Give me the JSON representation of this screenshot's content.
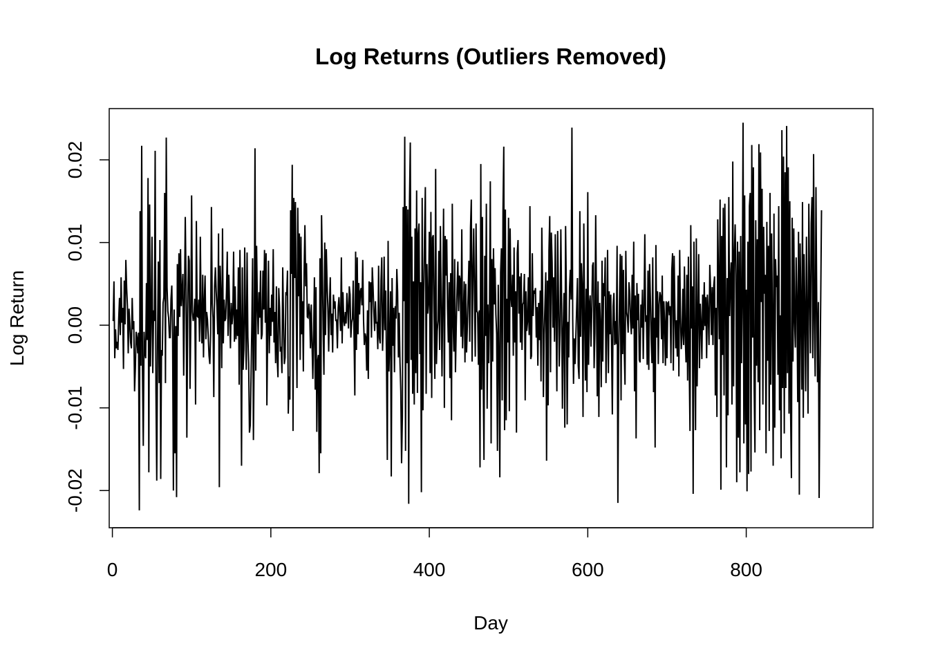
{
  "chart_data": {
    "type": "line",
    "title": "Log Returns (Outliers Removed)",
    "xlabel": "Day",
    "ylabel": "Log Return",
    "xlim": [
      -4,
      960
    ],
    "ylim": [
      -0.0245,
      0.0262
    ],
    "x_ticks": [
      0,
      200,
      400,
      600,
      800
    ],
    "x_tick_labels": [
      "0",
      "200",
      "400",
      "600",
      "800"
    ],
    "y_ticks": [
      -0.02,
      -0.01,
      0.0,
      0.01,
      0.02
    ],
    "y_tick_labels": [
      "-0.02",
      "-0.01",
      "0.00",
      "0.01",
      "0.02"
    ],
    "grid": false,
    "legend": "none",
    "line_color": "#000000",
    "series": [
      {
        "x_start": 1,
        "x_step": 1,
        "values": [
          0.0005,
          0.0053,
          -0.004,
          -0.0005,
          -0.0028,
          -0.002,
          -0.003,
          0.0008,
          0.0033,
          -0.0012,
          0.0058,
          0.0003,
          0.0021,
          -0.0053,
          0.0054,
          0.0001,
          0.0079,
          0.0045,
          0.0023,
          -0.0034,
          0.002,
          0.0002,
          -0.0021,
          -0.0028,
          0.0033,
          -0.0005,
          0.0005,
          -0.008,
          -0.0052,
          -0.0008,
          -0.0015,
          -0.0034,
          -0.0009,
          -0.0224,
          0.0138,
          -0.0049,
          0.0217,
          -0.0055,
          -0.0146,
          -0.0008,
          -0.0033,
          -0.004,
          0.0051,
          -0.0018,
          0.0178,
          -0.0178,
          0.0146,
          -0.005,
          0.0011,
          0.0107,
          -0.0058,
          0.0018,
          0.0005,
          0.0211,
          -0.008,
          -0.0188,
          -0.002,
          0.0077,
          -0.007,
          0.0103,
          -0.0186,
          -0.003,
          -0.0037,
          0.0027,
          0.0034,
          0.016,
          -0.007,
          0.0227,
          0.0046,
          0.0017,
          0.0009,
          -0.0015,
          -0.0015,
          0.0032,
          0.0048,
          -0.0011,
          -0.02,
          0.0019,
          -0.0155,
          -0.0001,
          -0.0208,
          0.0074,
          -0.0013,
          0.0087,
          0.001,
          0.0092,
          0.0023,
          0.0042,
          0.0062,
          -0.0061,
          0.0029,
          0.0131,
          0.005,
          -0.0136,
          0.0012,
          0.0084,
          0.0078,
          -0.0077,
          0.0005,
          0.0157,
          0.0016,
          0.0005,
          0.0013,
          0.0032,
          -0.0096,
          0.0126,
          0.0011,
          0.001,
          0.0031,
          -0.002,
          0.0107,
          0.0009,
          -0.0022,
          0.0061,
          -0.0039,
          0.003,
          0.006,
          -0.0017,
          0.0016,
          0.0007,
          -0.0014,
          -0.0037,
          -0.0047,
          -0.001,
          0.0143,
          0.0027,
          0.0009,
          -0.0087,
          0.0047,
          0.007,
          0.0041,
          0.0022,
          -0.0011,
          0.0111,
          -0.0196,
          0.0072,
          0.0038,
          -0.0052,
          0.0117,
          -0.0022,
          0.0031,
          0.0005,
          0.0008,
          0.004,
          0.0089,
          -0.0013,
          0.0061,
          0.0016,
          -0.0028,
          0.0027,
          0.0001,
          0.0014,
          0.0089,
          -0.002,
          0.0047,
          -0.0017,
          0.0019,
          -0.0013,
          0.007,
          -0.0072,
          0.0091,
          0.0008,
          -0.017,
          0.007,
          -0.0054,
          -0.0029,
          0.0094,
          0.0003,
          -0.0054,
          0.0088,
          -0.0014,
          -0.0046,
          -0.013,
          -0.0121,
          -0.0062,
          -0.0001,
          0.0081,
          -0.0139,
          -0.003,
          0.0214,
          -0.0055,
          0.0096,
          0.0026,
          -0.0011,
          0.004,
          0.0009,
          0.0066,
          -0.0017,
          -0.0011,
          0.0066,
          0.0019,
          0.0091,
          0.0003,
          0.0087,
          -0.0097,
          -0.0006,
          0.0078,
          -0.0034,
          0.0021,
          -0.0013,
          0.0037,
          0.0004,
          0.0092,
          -0.0021,
          0.0016,
          -0.0046,
          0.0047,
          -0.004,
          -0.0063,
          0.0045,
          0.0021,
          -0.0032,
          -0.0026,
          -0.0058,
          0.007,
          0.0006,
          -0.0047,
          -0.0039,
          0.004,
          0.0036,
          0.0066,
          -0.0107,
          -0.0062,
          -0.009,
          0.0139,
          0.0062,
          0.0194,
          -0.0128,
          0.0154,
          0.0057,
          0.0149,
          0.003,
          -0.0076,
          0.0142,
          0.0035,
          0.0111,
          -0.0042,
          0.0107,
          -0.0011,
          0.0029,
          -0.0056,
          0.0065,
          0.0121,
          0.0047,
          0.0075,
          0.001,
          0.0009,
          0.0026,
          0.0015,
          -0.0028,
          0.0025,
          -0.0022,
          -0.0065,
          -0.0011,
          0.0058,
          -0.0078,
          0.0046,
          -0.0129,
          -0.0044,
          -0.0036,
          -0.0179,
          0.0081,
          -0.0155,
          0.0133,
          0.0071,
          -0.0005,
          -0.006,
          0.01,
          -0.0012,
          0.0092,
          0.005,
          0.002,
          -0.0032,
          0.0025,
          0.0058,
          -0.0012,
          0.0014,
          -0.0033,
          0.0037,
          0.002,
          0.0029,
          0.0005,
          0.0007,
          -0.0028,
          0.0021,
          0.0034,
          0.0012,
          -0.0007,
          0.0082,
          -0.0022,
          0.004,
          0.0006,
          -0.0001,
          0.0016,
          0.0002,
          0.0039,
          0.002,
          -0.0004,
          0.0047,
          0.0037,
          -0.0015,
          0.0003,
          0.0008,
          0.0054,
          -0.0013,
          -0.0085,
          0.0089,
          -0.003,
          0.0082,
          -0.0011,
          0.0051,
          0.0013,
          0.0041,
          0.0045,
          0.0024,
          0.0079,
          0.0006,
          -0.0024,
          -0.001,
          -0.0015,
          -0.0055,
          0.0018,
          -0.0065,
          0.0053,
          0.0028,
          0.0052,
          -0.0015,
          0.007,
          0.0046,
          0.0016,
          -0.0007,
          0.0029,
          0.0002,
          0.0004,
          -0.0029,
          0.0072,
          -0.0015,
          -0.0022,
          0.0054,
          0.0082,
          -0.0031,
          0.0003,
          0.0083,
          -0.0006,
          0.0042,
          -0.0046,
          -0.0163,
          0.0102,
          -0.0056,
          -0.0021,
          0.0041,
          -0.0183,
          0.0057,
          -0.0025,
          0.0021,
          -0.0057,
          0.0023,
          0.0008,
          0.0068,
          0.004,
          -0.0039,
          0.0015,
          -0.0045,
          -0.008,
          -0.0167,
          -0.011,
          0.0143,
          0.0029,
          0.0228,
          -0.0152,
          0.0144,
          -0.0046,
          0.014,
          -0.0216,
          0.015,
          0.0221,
          -0.0042,
          0.0107,
          -0.0083,
          0.0053,
          -0.0096,
          0.0117,
          -0.0058,
          0.0163,
          -0.0082,
          0.0111,
          0.0123,
          -0.0035,
          0.0052,
          -0.0202,
          0.0154,
          -0.0103,
          0.0038,
          0.0108,
          0.0167,
          -0.0083,
          0.0074,
          0.0014,
          0.0028,
          0.0113,
          -0.0058,
          0.0137,
          -0.0088,
          0.0106,
          0.0109,
          0.0014,
          -0.0065,
          0.0189,
          -0.0047,
          -0.0007,
          0.0006,
          0.009,
          -0.003,
          0.012,
          0.0033,
          -0.0062,
          0.0034,
          0.0141,
          -0.01,
          0.0108,
          0.006,
          0.0104,
          0.0022,
          -0.0021,
          0.0052,
          -0.0064,
          0.0063,
          -0.0115,
          0.0147,
          0.0004,
          -0.0032,
          0.008,
          -0.0057,
          -0.0002,
          0.0043,
          0.0077,
          0.0017,
          0.006,
          0.0055,
          -0.0014,
          0.0116,
          -0.0028,
          0.0012,
          0.0053,
          -0.0045,
          0.005,
          -0.0033,
          -0.0002,
          0.0037,
          0.0078,
          -0.002,
          0.0118,
          0.0152,
          -0.0044,
          0.0063,
          0.0117,
          0.0037,
          -0.0038,
          0.0123,
          0.0017,
          0.0015,
          -0.0048,
          0.0018,
          -0.0172,
          0.0195,
          -0.0078,
          0.0131,
          -0.0059,
          -0.0163,
          0.0084,
          -0.0013,
          0.0147,
          -0.0101,
          0.0025,
          -0.0046,
          0.0018,
          0.0174,
          -0.0143,
          0.008,
          -0.0044,
          0.0093,
          0.0025,
          0.0069,
          0.0013,
          -0.0011,
          -0.0152,
          0.0049,
          -0.0036,
          -0.0184,
          0.0064,
          0.0093,
          -0.0091,
          0.0138,
          0.0216,
          -0.0127,
          0.014,
          -0.0115,
          0.0032,
          -0.0021,
          0.013,
          -0.0104,
          0.0117,
          0.0036,
          0.0022,
          0.0061,
          -0.0037,
          0.0094,
          -0.0021,
          0.0041,
          -0.013,
          0.0087,
          0.0103,
          0.0014,
          0.0059,
          -0.0021,
          0.0063,
          -0.003,
          0.0025,
          0.0028,
          0.0062,
          -0.0091,
          0.0041,
          -0.0007,
          0.0004,
          0.0058,
          -0.0012,
          0.0144,
          -0.0041,
          -0.0037,
          0.0087,
          0.0011,
          0.0042,
          0.0038,
          0.0045,
          -0.0015,
          0.0022,
          -0.0049,
          0.0027,
          -0.0018,
          0.0042,
          -0.0068,
          0.0118,
          0.0042,
          -0.0087,
          -0.0011,
          0.0026,
          0.0064,
          -0.0164,
          0.0054,
          -0.0097,
          0.009,
          0.0132,
          -0.0057,
          0.0112,
          0.0076,
          -0.0003,
          0.0058,
          -0.002,
          0.011,
          0.0008,
          -0.008,
          0.0114,
          0.0034,
          -0.005,
          -0.0008,
          0.0116,
          0.0027,
          -0.0101,
          -0.0005,
          0.0039,
          -0.0124,
          0.012,
          0.0039,
          -0.012,
          0.0004,
          -0.0039,
          0.0045,
          0.0067,
          0.0031,
          0.0239,
          0.0007,
          -0.0071,
          -0.0016,
          -0.0047,
          -0.0012,
          0.0022,
          0.0057,
          -0.0049,
          -0.0065,
          0.0138,
          -0.0014,
          0.0075,
          0.0048,
          -0.0111,
          0.0123,
          0.0013,
          -0.0067,
          0.0044,
          -0.0081,
          0.0161,
          -0.0048,
          0.0024,
          0.0036,
          -0.0026,
          0.0017,
          0.0072,
          0.0076,
          -0.0052,
          -0.0009,
          0.0133,
          0.0024,
          -0.0086,
          0.0053,
          -0.0111,
          0.0027,
          -0.0001,
          -0.0075,
          0.0078,
          -0.0044,
          0.0051,
          0.0035,
          0.0082,
          -0.007,
          -0.0002,
          0.0091,
          -0.0058,
          0.0041,
          -0.0011,
          0.0037,
          -0.0021,
          -0.0108,
          0.0023,
          0.0039,
          -0.0024,
          0.0005,
          -0.0023,
          0.0096,
          -0.0215,
          -0.0036,
          0.0028,
          0.0086,
          -0.0091,
          0.0084,
          -0.0035,
          0.0067,
          -0.003,
          -0.0072,
          0.009,
          0.0016,
          0.0009,
          -0.0009,
          0.0052,
          0.0038,
          0.0005,
          -0.0011,
          0.0061,
          -0.0004,
          0.0101,
          -0.008,
          0.0036,
          -0.0137,
          0.0051,
          0.0006,
          0.0038,
          -0.0042,
          -0.0045,
          0.0025,
          -0.0003,
          0.0043,
          -0.0041,
          0.0021,
          0.011,
          0.0004,
          0.0012,
          -0.0048,
          0.0066,
          -0.0054,
          0.0074,
          0.0034,
          -0.0017,
          -0.0046,
          0.0082,
          -0.0081,
          0.0009,
          -0.0148,
          0.0097,
          -0.0015,
          0.0041,
          -0.0047,
          0.0025,
          0.004,
          0.0035,
          -0.0017,
          0.006,
          -0.0046,
          0.0029,
          0.0003,
          -0.0049,
          0.0029,
          -0.004,
          0.0027,
          0.0028,
          0.0012,
          0.0023,
          -0.0046,
          0.0066,
          0.0087,
          -0.0055,
          0.0084,
          0.0015,
          -0.0028,
          0.0006,
          -0.0038,
          0.006,
          -0.0062,
          0.0091,
          0.0011,
          -0.0029,
          -0.0012,
          0.0044,
          -0.0024,
          0.0071,
          -0.0013,
          -0.0045,
          0.0061,
          -0.0067,
          0.0083,
          -0.0045,
          -0.0128,
          0.0121,
          -0.0004,
          0.0047,
          -0.0204,
          0.0101,
          -0.0024,
          -0.0127,
          0.0105,
          -0.0074,
          0.0011,
          0.0086,
          -0.0052,
          0.0026,
          0.0002,
          -0.0041,
          0.0037,
          -0.0006,
          0.0052,
          -0.0001,
          0.0034,
          -0.004,
          0.0037,
          0.0014,
          -0.0024,
          0.0073,
          0.0043,
          -0.0012,
          0.0046,
          -0.0024,
          0.0048,
          0.0059,
          -0.0085,
          0.0021,
          -0.0111,
          0.0128,
          0.0055,
          -0.0017,
          0.0152,
          -0.0199,
          0.0108,
          -0.0036,
          0.0142,
          -0.0085,
          0.0147,
          0.0042,
          -0.0172,
          0.0057,
          -0.0109,
          0.0155,
          0.0011,
          0.0054,
          0.0076,
          -0.0096,
          0.0198,
          -0.0074,
          0.0084,
          0.0122,
          0.0061,
          -0.019,
          0.0101,
          -0.0136,
          0.0089,
          -0.0178,
          0.0108,
          -0.0046,
          0.0037,
          0.0245,
          -0.0143,
          0.0157,
          -0.012,
          0.0043,
          -0.0201,
          0.0101,
          -0.018,
          0.0144,
          0.016,
          -0.0177,
          0.0218,
          -0.0015,
          0.0191,
          -0.0077,
          -0.0154,
          0.0127,
          -0.0049,
          0.0104,
          -0.0069,
          0.0219,
          -0.0127,
          0.0209,
          0.0028,
          0.0165,
          -0.0096,
          0.0119,
          0.0038,
          0.0061,
          -0.0155,
          0.0125,
          -0.0043,
          0.0096,
          -0.0128,
          0.016,
          -0.0072,
          0.0111,
          0.0015,
          -0.017,
          0.0135,
          -0.0124,
          0.008,
          0.0046,
          0.006,
          -0.006,
          0.0144,
          -0.0103,
          0.0012,
          -0.0161,
          0.0236,
          -0.0076,
          0.0204,
          -0.0131,
          0.0185,
          -0.0076,
          0.0241,
          -0.0058,
          0.0191,
          -0.0107,
          0.015,
          -0.0104,
          -0.0185,
          0.013,
          -0.0044,
          0.0117,
          0.0005,
          -0.0027,
          0.0082,
          0.0029,
          -0.0093,
          0.0113,
          -0.0205,
          0.0099,
          0.0025,
          -0.0078,
          0.0149,
          -0.0112,
          0.0086,
          0.0017,
          -0.008,
          0.0107,
          0.0011,
          -0.0107,
          0.0147,
          0.0042,
          -0.0034,
          0.0123,
          0.0155,
          -0.004,
          0.0207,
          0.0007,
          -0.0062,
          0.0167,
          0.0024,
          -0.0069,
          0.0028,
          -0.0209,
          -0.0071,
          0.0032,
          0.0139
        ]
      }
    ]
  }
}
